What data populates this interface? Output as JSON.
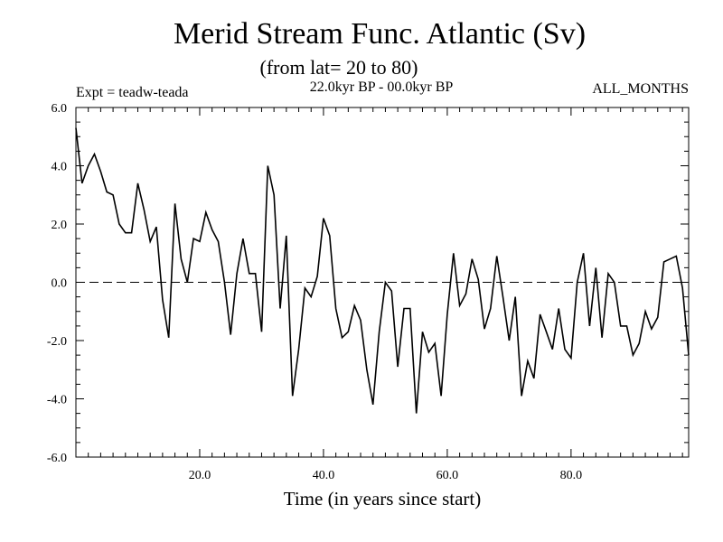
{
  "colors": {
    "line": "#000000",
    "background": "#ffffff",
    "zero_line": "#000000"
  },
  "chart_data": {
    "type": "line",
    "title": "Merid Stream Func. Atlantic (Sv)",
    "subtitle": "(from lat= 20 to 80)",
    "experiment": "Expt = teadw-teada",
    "period": "22.0kyr BP - 00.0kyr BP",
    "season": "ALL_MONTHS",
    "xlabel": "Time (in years since start)",
    "ylabel": "",
    "xlim": [
      0,
      99
    ],
    "ylim": [
      -6.0,
      6.0
    ],
    "xticks": [
      20,
      40,
      60,
      80
    ],
    "xtick_labels": [
      "20.0",
      "40.0",
      "60.0",
      "80.0"
    ],
    "yticks": [
      -6,
      -4,
      -2,
      0,
      2,
      4,
      6
    ],
    "ytick_labels": [
      "-6.0",
      "-4.0",
      "-2.0",
      "0.0",
      "2.0",
      "4.0",
      "6.0"
    ],
    "reference_line": {
      "y": 0,
      "style": "dashed"
    },
    "series": [
      {
        "name": "Merid Stream Func. Atlantic",
        "x": [
          0,
          1,
          2,
          3,
          4,
          5,
          6,
          7,
          8,
          9,
          10,
          11,
          12,
          13,
          14,
          15,
          16,
          17,
          18,
          19,
          20,
          21,
          22,
          23,
          24,
          25,
          26,
          27,
          28,
          29,
          30,
          31,
          32,
          33,
          34,
          35,
          36,
          37,
          38,
          39,
          40,
          41,
          42,
          43,
          44,
          45,
          46,
          47,
          48,
          49,
          50,
          51,
          52,
          53,
          54,
          55,
          56,
          57,
          58,
          59,
          60,
          61,
          62,
          63,
          64,
          65,
          66,
          67,
          68,
          69,
          70,
          71,
          72,
          73,
          74,
          75,
          76,
          77,
          78,
          79,
          80,
          81,
          82,
          83,
          84,
          85,
          86,
          87,
          88,
          89,
          90,
          91,
          92,
          93,
          94,
          95,
          96,
          97,
          98,
          99
        ],
        "values": [
          5.3,
          3.4,
          4.0,
          4.4,
          3.8,
          3.1,
          3.0,
          2.0,
          1.7,
          1.7,
          3.4,
          2.5,
          1.4,
          1.9,
          -0.6,
          -1.9,
          2.7,
          0.8,
          0.0,
          1.5,
          1.4,
          2.4,
          1.8,
          1.4,
          0.0,
          -1.8,
          0.3,
          1.5,
          0.3,
          0.3,
          -1.7,
          4.0,
          3.0,
          -0.9,
          1.6,
          -3.9,
          -2.3,
          -0.2,
          -0.5,
          0.2,
          2.2,
          1.6,
          -0.9,
          -1.9,
          -1.7,
          -0.8,
          -1.3,
          -3.0,
          -4.2,
          -1.7,
          0.0,
          -0.3,
          -2.9,
          -0.9,
          -0.9,
          -4.5,
          -1.7,
          -2.4,
          -2.1,
          -3.9,
          -1.1,
          1.0,
          -0.8,
          -0.4,
          0.8,
          0.1,
          -1.6,
          -0.9,
          0.9,
          -0.5,
          -2.0,
          -0.5,
          -3.9,
          -2.7,
          -3.3,
          -1.1,
          -1.7,
          -2.3,
          -0.9,
          -2.3,
          -2.6,
          0.0,
          1.0,
          -1.5,
          0.5,
          -1.9,
          0.3,
          0.0,
          -1.5,
          -1.5,
          -2.5,
          -2.1,
          -1.0,
          -1.6,
          -1.2,
          0.7,
          0.8,
          0.9,
          -0.2,
          -2.5
        ]
      }
    ]
  }
}
